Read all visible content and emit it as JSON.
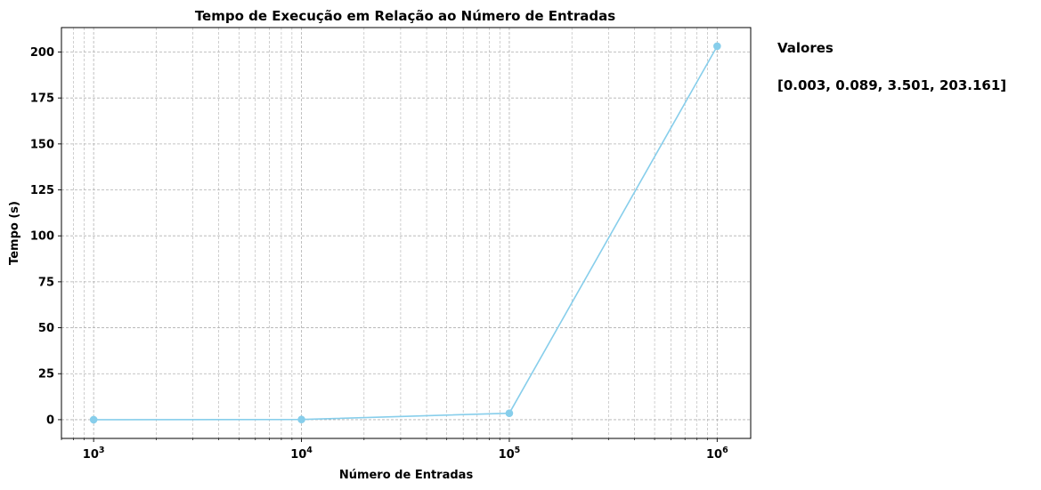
{
  "chart_data": {
    "type": "line",
    "title": "Tempo de Execução em Relação ao Número de Entradas",
    "xlabel": "Número de Entradas",
    "ylabel": "Tempo (s)",
    "x_scale": "log",
    "x": [
      1000,
      10000,
      100000,
      1000000
    ],
    "series": [
      {
        "values": [
          0.003,
          0.089,
          3.501,
          203.161
        ],
        "color": "#87CEEB",
        "marker": "circle"
      }
    ],
    "xlim": [
      700,
      1450000
    ],
    "ylim": [
      -10.2,
      213.3
    ],
    "x_ticks": [
      {
        "value": 1000,
        "base": "10",
        "exp": "3"
      },
      {
        "value": 10000,
        "base": "10",
        "exp": "4"
      },
      {
        "value": 100000,
        "base": "10",
        "exp": "5"
      },
      {
        "value": 1000000,
        "base": "10",
        "exp": "6"
      }
    ],
    "y_ticks": [
      {
        "value": 0,
        "label": "0"
      },
      {
        "value": 25,
        "label": "25"
      },
      {
        "value": 50,
        "label": "50"
      },
      {
        "value": 75,
        "label": "75"
      },
      {
        "value": 100,
        "label": "100"
      },
      {
        "value": 125,
        "label": "125"
      },
      {
        "value": 150,
        "label": "150"
      },
      {
        "value": 175,
        "label": "175"
      },
      {
        "value": 200,
        "label": "200"
      }
    ],
    "grid": "major and minor, dashed",
    "annotations": {
      "heading": "Valores",
      "values_text": "[0.003, 0.089, 3.501, 203.161]"
    }
  }
}
